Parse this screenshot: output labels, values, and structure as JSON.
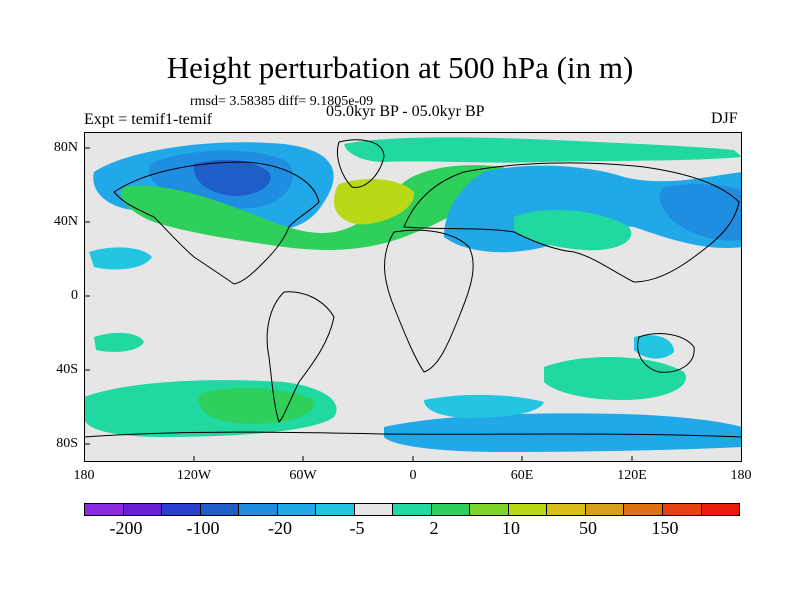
{
  "title": "Height perturbation at 500 hPa (in m)",
  "stats": "rmsd= 3.58385 diff= 9.1805e-09",
  "experiment": "Expt = temif1-temif",
  "period": "05.0kyr BP - 05.0kyr BP",
  "season": "DJF",
  "lat_labels": [
    "80N",
    "40N",
    "0",
    "40S",
    "80S"
  ],
  "lon_labels": [
    "180",
    "120W",
    "60W",
    "0",
    "60E",
    "120E",
    "180"
  ],
  "colorbar": {
    "colors": [
      "#8a2be2",
      "#6a1fd6",
      "#2a3fd0",
      "#1f5ec8",
      "#1f8de0",
      "#20a8e8",
      "#22c6e0",
      "#e6e6e6",
      "#20d8a0",
      "#2ecf5a",
      "#7ed428",
      "#b8d818",
      "#d8c018",
      "#d8a018",
      "#e07014",
      "#e84010",
      "#e81c0c"
    ],
    "tick_labels": [
      "-200",
      "-100",
      "-20",
      "-5",
      "2",
      "10",
      "50",
      "150"
    ]
  },
  "map_colors": {
    "background": "#e6e6e6",
    "land_outline": "#000000"
  }
}
